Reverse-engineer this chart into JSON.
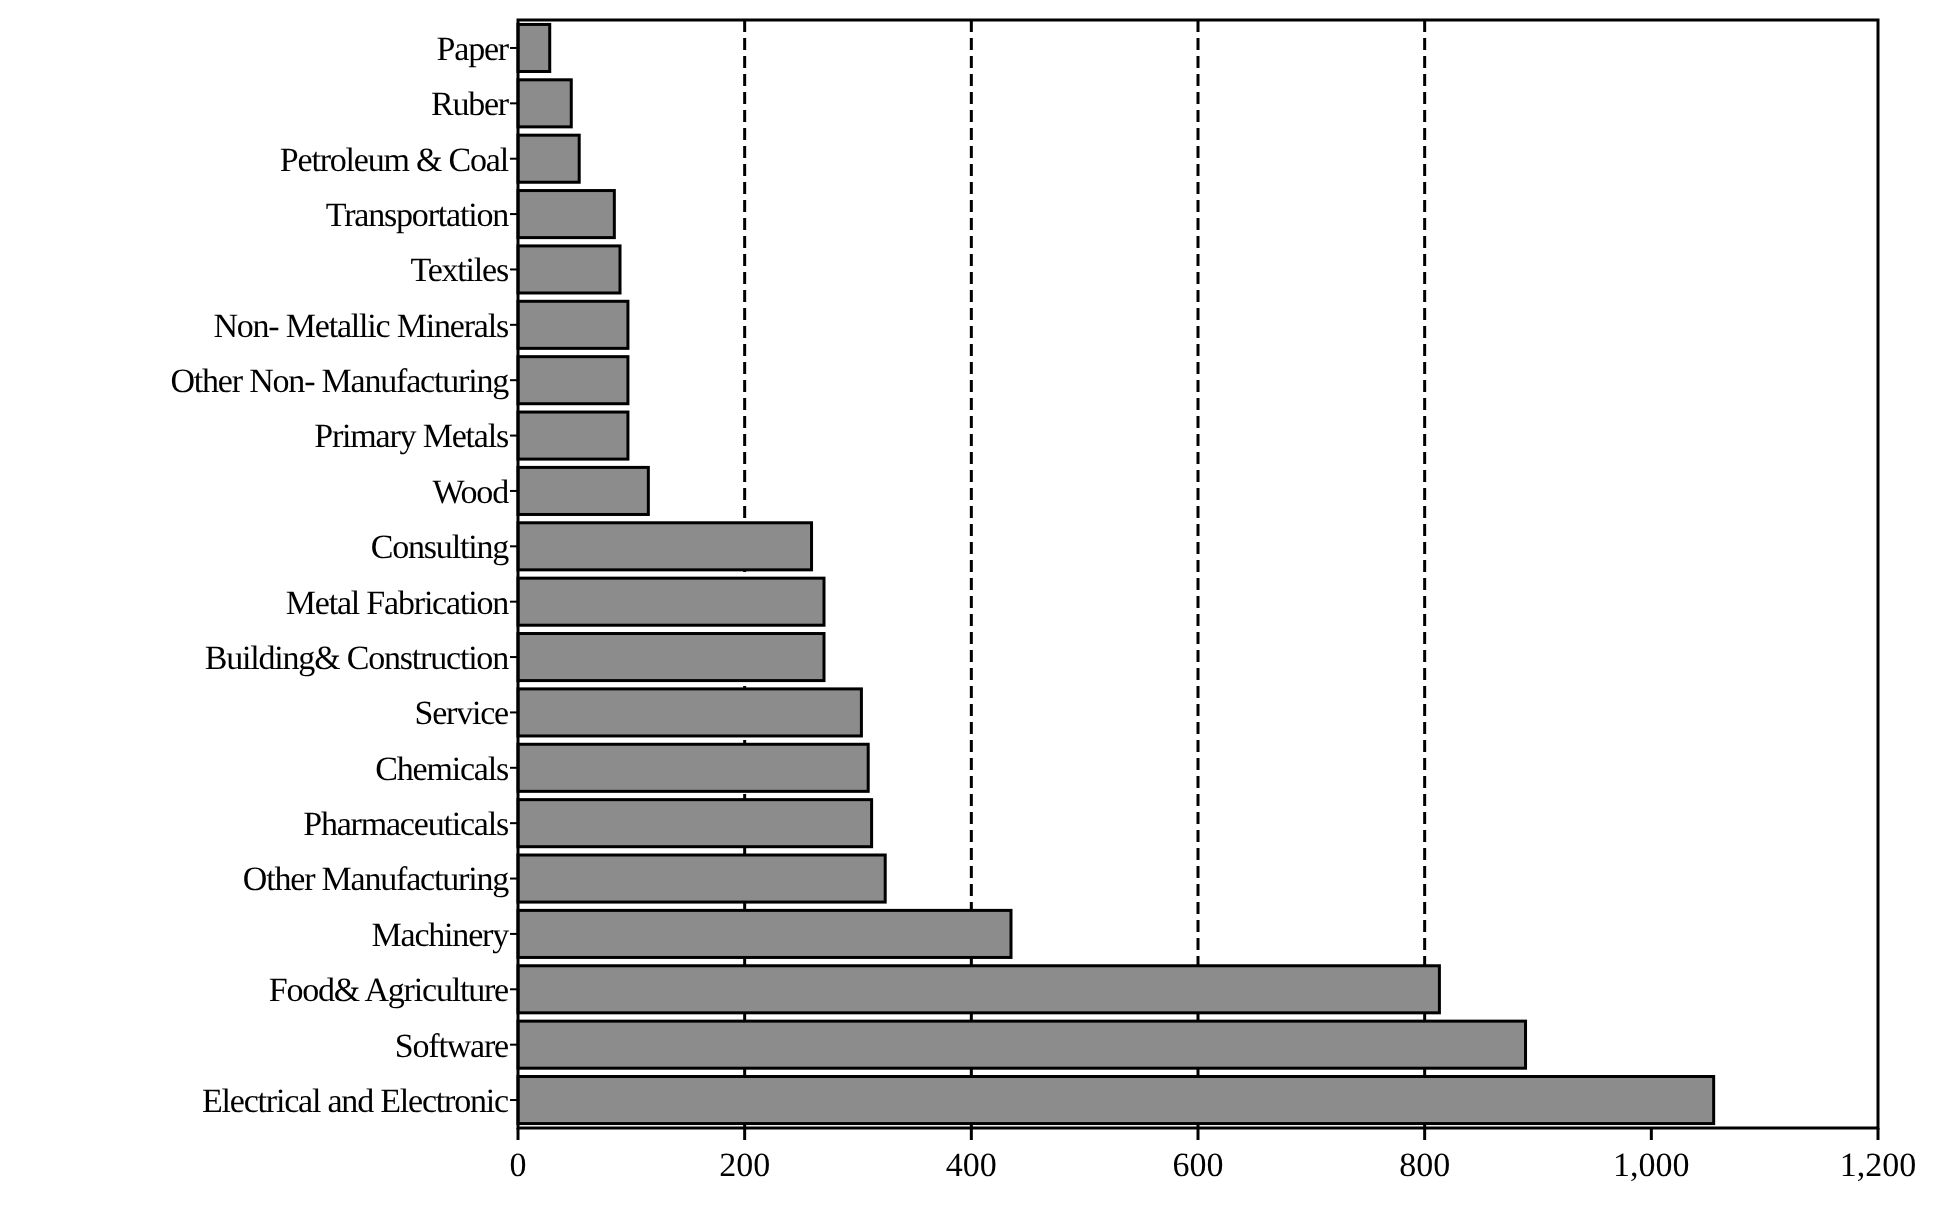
{
  "chart_data": {
    "type": "bar",
    "orientation": "horizontal",
    "categories": [
      "Paper",
      "Ruber",
      "Petroleum & Coal",
      "Transportation",
      "Textiles",
      "Non- Metallic Minerals",
      "Other Non- Manufacturing",
      "Primary Metals",
      "Wood",
      "Consulting",
      "Metal Fabrication",
      "Building& Construction",
      "Service",
      "Chemicals",
      "Pharmaceuticals",
      "Other Manufacturing",
      "Machinery",
      "Food& Agriculture",
      "Software",
      "Electrical and Electronic"
    ],
    "values": [
      28,
      47,
      54,
      85,
      90,
      97,
      97,
      97,
      115,
      259,
      270,
      270,
      303,
      309,
      312,
      324,
      435,
      813,
      889,
      1055
    ],
    "color": "#8c8c8c",
    "xlim": [
      0,
      1200
    ],
    "xticks": [
      0,
      200,
      400,
      600,
      800,
      {
        "value": 1000,
        "label": "1,000"
      },
      {
        "value": 1200,
        "label": "1,200"
      }
    ],
    "ref_lines": [
      {
        "axis": "x",
        "value": 200,
        "line_style": "dashed"
      },
      {
        "axis": "x",
        "value": 400,
        "line_style": "dashed"
      },
      {
        "axis": "x",
        "value": 600,
        "line_style": "dashed"
      },
      {
        "axis": "x",
        "value": 800,
        "line_style": "dashed"
      }
    ]
  }
}
